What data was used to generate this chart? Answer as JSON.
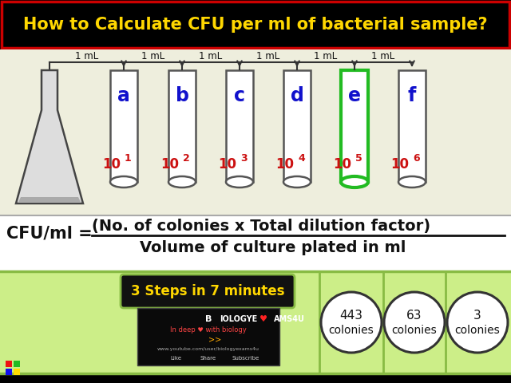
{
  "title": "How to Calculate CFU per ml of bacterial sample?",
  "title_color": "#FFD700",
  "title_bg": "#000000",
  "title_border": "#CC0000",
  "main_bg": "#EEEEDD",
  "formula_bg": "#FFFFFF",
  "bottom_bg": "#CCEE88",
  "formula_prefix": "CFU/ml =  ",
  "formula_numerator": "(No. of colonies x Total dilution factor)",
  "formula_denominator": "Volume of culture plated in ml",
  "steps_text": "3 Steps in 7 minutes",
  "tube_labels": [
    "a",
    "b",
    "c",
    "d",
    "e",
    "f"
  ],
  "dilution_bases": [
    "10",
    "10",
    "10",
    "10",
    "10",
    "10"
  ],
  "dilution_exps": [
    "1",
    "2",
    "3",
    "4",
    "5",
    "6"
  ],
  "highlighted_tube": 4,
  "highlight_color": "#22BB22",
  "tube_edge_color": "#555555",
  "label_color": "#1111CC",
  "dilution_color": "#CC1111",
  "colony_values": [
    "443",
    "63",
    "3"
  ],
  "colony_label": "colonies",
  "divider_color": "#88BB44",
  "title_fontsize": 15,
  "formula_fontsize": 14,
  "tube_label_fontsize": 17,
  "dilution_fontsize": 12,
  "steps_fontsize": 12
}
